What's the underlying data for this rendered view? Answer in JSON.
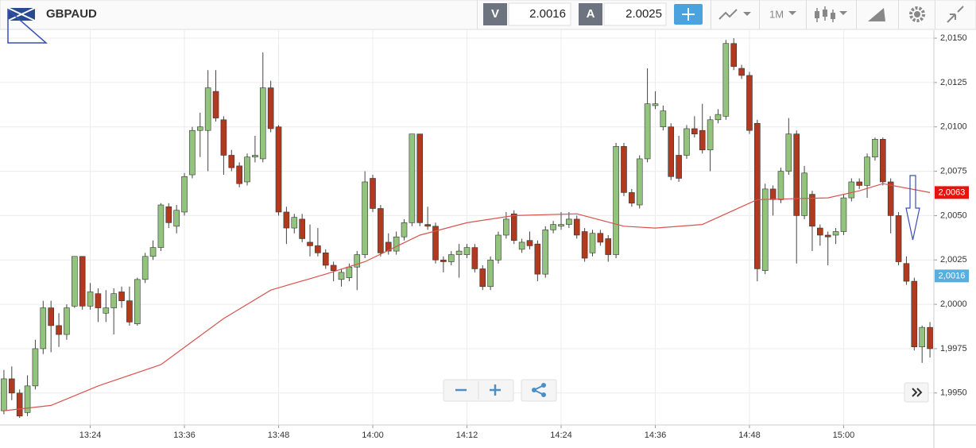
{
  "toolbar": {
    "symbol": "GBPAUD",
    "bid_label": "V",
    "bid": "2.0016",
    "ask_label": "A",
    "ask": "2.0025",
    "timeframe": "1M"
  },
  "chart_data": {
    "type": "candlestick",
    "x": [
      793,
      794,
      795,
      796,
      797,
      798,
      799,
      800,
      801,
      802,
      803,
      804,
      805,
      806,
      807,
      808,
      809,
      810,
      811,
      812,
      813,
      814,
      815,
      816,
      817,
      818,
      819,
      820,
      821,
      822,
      823,
      824,
      825,
      826,
      827,
      828,
      829,
      830,
      831,
      832,
      833,
      834,
      835,
      836,
      837,
      838,
      839,
      840,
      841,
      842,
      843,
      844,
      845,
      846,
      847,
      848,
      849,
      850,
      851,
      852,
      853,
      854,
      855,
      856,
      857,
      858,
      859,
      860,
      861,
      862,
      863,
      864,
      865,
      866,
      867,
      868,
      869,
      870,
      871,
      872,
      873,
      874,
      875,
      876,
      877,
      878,
      879,
      880,
      881,
      882,
      883,
      884,
      885,
      886,
      887,
      888,
      889,
      890,
      891,
      892,
      893,
      894,
      895,
      896,
      897,
      898,
      899,
      900,
      901,
      902,
      903,
      904,
      905,
      906,
      907,
      908,
      909,
      910,
      911
    ],
    "open": [
      1.994,
      1.9958,
      1.995,
      1.9939,
      1.9954,
      1.9975,
      1.9998,
      1.9988,
      1.9983,
      1.9999,
      2.0027,
      1.9999,
      2.0006,
      1.9995,
      1.9998,
      2.0007,
      2.0002,
      1.9989,
      2.0014,
      2.0027,
      2.0032,
      2.0055,
      2.0044,
      2.0052,
      2.0073,
      2.0098,
      2.0098,
      2.012,
      2.0104,
      2.0084,
      2.0078,
      2.0069,
      2.0083,
      2.0082,
      2.0122,
      2.01,
      2.0052,
      2.0043,
      2.0048,
      2.0035,
      2.0033,
      2.0029,
      2.0022,
      2.0014,
      2.0015,
      2.0021,
      2.0028,
      2.0071,
      2.0054,
      2.0035,
      2.003,
      2.0038,
      2.0046,
      2.0096,
      2.0045,
      2.0044,
      2.0025,
      2.0024,
      2.0028,
      2.0028,
      2.0032,
      2.002,
      2.001,
      2.0025,
      2.0039,
      2.0051,
      2.0031,
      2.0036,
      2.0034,
      2.0017,
      2.0042,
      2.0044,
      2.0045,
      2.0048,
      2.0041,
      2.0029,
      2.004,
      2.0037,
      2.0028,
      2.0089,
      2.0063,
      2.0056,
      2.0082,
      2.0112,
      2.01,
      2.01,
      2.0084,
      2.0084,
      2.0099,
      2.0098,
      2.0087,
      2.0104,
      2.0106,
      2.0147,
      2.0133,
      2.0129,
      2.0102,
      2.0019,
      2.0065,
      2.0059,
      2.0075,
      2.0096,
      2.005,
      2.0062,
      2.0043,
      2.0039,
      2.0039,
      2.0041,
      2.006,
      2.0069,
      2.0067,
      2.0083,
      2.0093,
      2.0069,
      2.005,
      2.0023,
      2.0013,
      1.9976,
      1.9987
    ],
    "high": [
      1.9963,
      1.9965,
      1.9952,
      1.996,
      1.998,
      2.0002,
      2.0002,
      1.9995,
      2.0,
      2.0027,
      2.0027,
      2.0012,
      2.0009,
      2.0008,
      2.0009,
      2.001,
      2.001,
      2.0015,
      2.0029,
      2.0036,
      2.0057,
      2.0057,
      2.0056,
      2.0074,
      2.01,
      2.0108,
      2.0132,
      2.0132,
      2.0106,
      2.0087,
      2.008,
      2.0085,
      2.0095,
      2.0142,
      2.0126,
      2.0101,
      2.0055,
      2.0051,
      2.0051,
      2.0045,
      2.0043,
      2.0031,
      2.0024,
      2.002,
      2.0023,
      2.003,
      2.0075,
      2.0073,
      2.0056,
      2.004,
      2.0041,
      2.0048,
      2.0096,
      2.0096,
      2.0055,
      2.0046,
      2.0027,
      2.003,
      2.0034,
      2.0034,
      2.0034,
      2.0022,
      2.0027,
      2.0041,
      2.0052,
      2.0053,
      2.0037,
      2.0041,
      2.0036,
      2.0044,
      2.0047,
      2.0052,
      2.0052,
      2.005,
      2.0043,
      2.0042,
      2.0042,
      2.0039,
      2.0091,
      2.0091,
      2.0065,
      2.0084,
      2.0133,
      2.012,
      2.0112,
      2.0102,
      2.0095,
      2.0101,
      2.0106,
      2.0113,
      2.0106,
      2.011,
      2.0149,
      2.015,
      2.0135,
      2.0131,
      2.0104,
      2.0068,
      2.0067,
      2.0077,
      2.0105,
      2.0098,
      2.0078,
      2.0064,
      2.0045,
      2.0041,
      2.0043,
      2.0062,
      2.0071,
      2.0071,
      2.0085,
      2.0094,
      2.0094,
      2.0071,
      2.0052,
      2.0027,
      2.0015,
      1.9988,
      1.999
    ],
    "low": [
      1.9938,
      1.9946,
      1.9936,
      1.9937,
      1.9952,
      1.9972,
      1.9973,
      1.9976,
      1.998,
      1.9998,
      1.9997,
      1.9997,
      1.999,
      1.999,
      1.9983,
      1.9998,
      1.9988,
      1.9988,
      2.0012,
      2.0025,
      2.003,
      2.0043,
      2.004,
      2.005,
      2.0071,
      2.0083,
      2.0075,
      2.0103,
      2.0073,
      2.0075,
      2.0066,
      2.0067,
      2.008,
      2.008,
      2.0097,
      2.005,
      2.0034,
      2.004,
      2.0035,
      2.0027,
      2.0027,
      2.002,
      2.0013,
      2.001,
      2.0013,
      2.0008,
      2.0026,
      2.0052,
      2.0027,
      2.0028,
      2.0028,
      2.0036,
      2.0044,
      2.0044,
      2.0042,
      2.0023,
      2.0018,
      2.0022,
      2.0015,
      2.0026,
      2.0018,
      2.0008,
      2.0008,
      2.0023,
      2.0037,
      2.0034,
      2.0029,
      2.0031,
      2.0013,
      2.0015,
      2.004,
      2.0042,
      2.0043,
      2.0037,
      2.0024,
      2.0027,
      2.0033,
      2.0024,
      2.0026,
      2.0061,
      2.0055,
      2.0054,
      2.008,
      2.011,
      2.0098,
      2.007,
      2.0069,
      2.0082,
      2.0094,
      2.0085,
      2.0075,
      2.0102,
      2.0104,
      2.0132,
      2.0127,
      2.0096,
      2.0013,
      2.0017,
      2.005,
      2.0057,
      2.0073,
      2.0023,
      2.0048,
      2.003,
      2.0033,
      2.0022,
      2.0034,
      2.0039,
      2.0058,
      2.0065,
      2.006,
      2.0081,
      2.0067,
      2.004,
      2.0022,
      2.0011,
      1.9974,
      1.9967,
      1.997
    ],
    "close": [
      1.9958,
      1.995,
      1.9937,
      1.9954,
      1.9975,
      1.9998,
      1.9988,
      1.9983,
      1.9998,
      2.0027,
      1.9999,
      2.0007,
      1.9998,
      1.9998,
      2.0006,
      2.0002,
      1.999,
      2.0014,
      2.0027,
      2.0032,
      2.0056,
      2.0046,
      2.0053,
      2.0072,
      2.0098,
      2.01,
      2.0122,
      2.0105,
      2.0084,
      2.0077,
      2.0068,
      2.0083,
      2.0084,
      2.0122,
      2.0099,
      2.0052,
      2.0043,
      2.0049,
      2.0037,
      2.0033,
      2.0029,
      2.0022,
      2.0019,
      2.0018,
      2.0021,
      2.0028,
      2.0069,
      2.0054,
      2.0029,
      2.003,
      2.0038,
      2.0046,
      2.0096,
      2.0046,
      2.0044,
      2.0025,
      2.0024,
      2.0028,
      2.003,
      2.0032,
      2.002,
      2.001,
      2.0025,
      2.0039,
      2.0048,
      2.0036,
      2.0035,
      2.0033,
      2.0017,
      2.0042,
      2.0045,
      2.0045,
      2.0048,
      2.0039,
      2.0026,
      2.004,
      2.0035,
      2.0028,
      2.0089,
      2.0063,
      2.0057,
      2.0082,
      2.0113,
      2.0113,
      2.0109,
      2.0072,
      2.0071,
      2.0099,
      2.0096,
      2.0087,
      2.0104,
      2.0107,
      2.0147,
      2.0134,
      2.0129,
      2.0098,
      2.002,
      2.0065,
      2.0059,
      2.0075,
      2.0096,
      2.005,
      2.0074,
      2.0044,
      2.0039,
      2.0038,
      2.0041,
      2.006,
      2.0069,
      2.0067,
      2.0083,
      2.0093,
      2.0069,
      2.005,
      2.0024,
      2.0013,
      1.9976,
      1.9987,
      1.9975
    ],
    "up_color": "#93c47d",
    "down_color": "#b0391e",
    "ma": {
      "color": "#d9534f",
      "x": [
        793,
        799,
        805,
        813,
        817,
        821,
        827,
        834,
        839,
        846,
        852,
        858,
        866,
        872,
        876,
        882,
        886,
        889,
        898,
        902,
        905,
        911
      ],
      "values": [
        1.994,
        1.9943,
        1.9954,
        1.9966,
        1.9979,
        1.9992,
        2.0008,
        2.0017,
        2.0024,
        2.0039,
        2.0046,
        2.005,
        2.0051,
        2.0044,
        2.0043,
        2.0045,
        2.0053,
        2.0059,
        2.006,
        2.0064,
        2.0068,
        2.0063
      ]
    },
    "xlim": [
      792.5,
      911.5
    ],
    "ylim": [
      1.9932,
      2.01545
    ],
    "xticks": [
      {
        "value": 804,
        "label": "13:24"
      },
      {
        "value": 816,
        "label": "13:36"
      },
      {
        "value": 828,
        "label": "13:48"
      },
      {
        "value": 840,
        "label": "14:00"
      },
      {
        "value": 852,
        "label": "14:12"
      },
      {
        "value": 864,
        "label": "14:24"
      },
      {
        "value": 876,
        "label": "14:36"
      },
      {
        "value": 888,
        "label": "14:48"
      },
      {
        "value": 900,
        "label": "15:00"
      }
    ],
    "yticks": [
      {
        "value": 1.995,
        "label": "1,9950"
      },
      {
        "value": 1.9975,
        "label": "1,9975"
      },
      {
        "value": 2.0,
        "label": "2,0000"
      },
      {
        "value": 2.0025,
        "label": "2,0025"
      },
      {
        "value": 2.005,
        "label": "2,0050"
      },
      {
        "value": 2.0075,
        "label": "2,0075"
      },
      {
        "value": 2.01,
        "label": "2,0100"
      },
      {
        "value": 2.0125,
        "label": "2,0125"
      },
      {
        "value": 2.015,
        "label": "2,0150"
      }
    ],
    "price_markers": [
      {
        "value": 2.0063,
        "label": "2,0063",
        "color": "#e8130f"
      },
      {
        "value": 2.0016,
        "label": "2,0016",
        "color": "#5aaedc"
      }
    ],
    "grid": true
  }
}
